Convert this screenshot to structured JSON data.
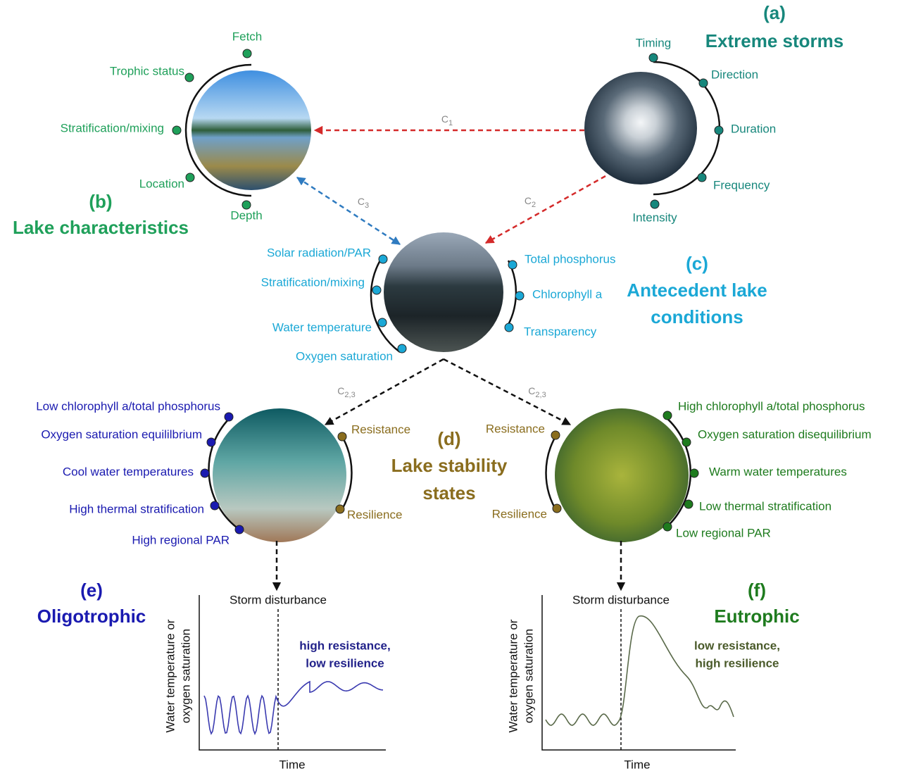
{
  "storms": {
    "label": "(a)",
    "title": "Extreme storms",
    "factors": [
      "Timing",
      "Direction",
      "Duration",
      "Frequency",
      "Intensity"
    ]
  },
  "lake": {
    "label": "(b)",
    "title": "Lake characteristics",
    "factors": [
      "Fetch",
      "Trophic status",
      "Stratification/mixing",
      "Location",
      "Depth"
    ]
  },
  "antecedent": {
    "label": "(c)",
    "title": [
      "Antecedent lake",
      "conditions"
    ],
    "factors_left": [
      "Solar radiation/PAR",
      "Stratification/mixing",
      "Water temperature",
      "Oxygen saturation"
    ],
    "factors_right": [
      "Total phosphorus",
      "Chlorophyll a",
      "Transparency"
    ]
  },
  "stability": {
    "label": "(d)",
    "title": [
      "Lake stability",
      "states"
    ],
    "oligotrophic_lake": {
      "factors": [
        "Low chlorophyll a/total phosphorus",
        "Oxygen saturation equililbrium",
        "Cool water temperatures",
        "High thermal stratification",
        "High regional PAR"
      ],
      "stability": [
        "Resistance",
        "Resilience"
      ]
    },
    "eutrophic_lake": {
      "factors": [
        "High chlorophyll a/total phosphorus",
        "Oxygen saturation disequilibrium",
        "Warm water temperatures",
        "Low thermal stratification",
        "Low regional PAR"
      ],
      "stability": [
        "Resistance",
        "Resilience"
      ]
    }
  },
  "oligotrophic": {
    "label": "(e)",
    "title": "Oligotrophic",
    "event": "Storm disturbance",
    "y_axis": [
      "Water temperature or",
      "oxygen saturation"
    ],
    "x_axis": "Time",
    "response": [
      "high resistance,",
      "low resilience"
    ]
  },
  "eutrophic": {
    "label": "(f)",
    "title": "Eutrophic",
    "event": "Storm disturbance",
    "y_axis": [
      "Water temperature or",
      "oxygen saturation"
    ],
    "x_axis": "Time",
    "response": [
      "low resistance,",
      "high resilience"
    ]
  },
  "connectors": [
    {
      "base": "C",
      "sub": "1"
    },
    {
      "base": "C",
      "sub": "2"
    },
    {
      "base": "C",
      "sub": "3"
    },
    {
      "base": "C",
      "sub": "2,3"
    },
    {
      "base": "C",
      "sub": "2,3"
    }
  ]
}
